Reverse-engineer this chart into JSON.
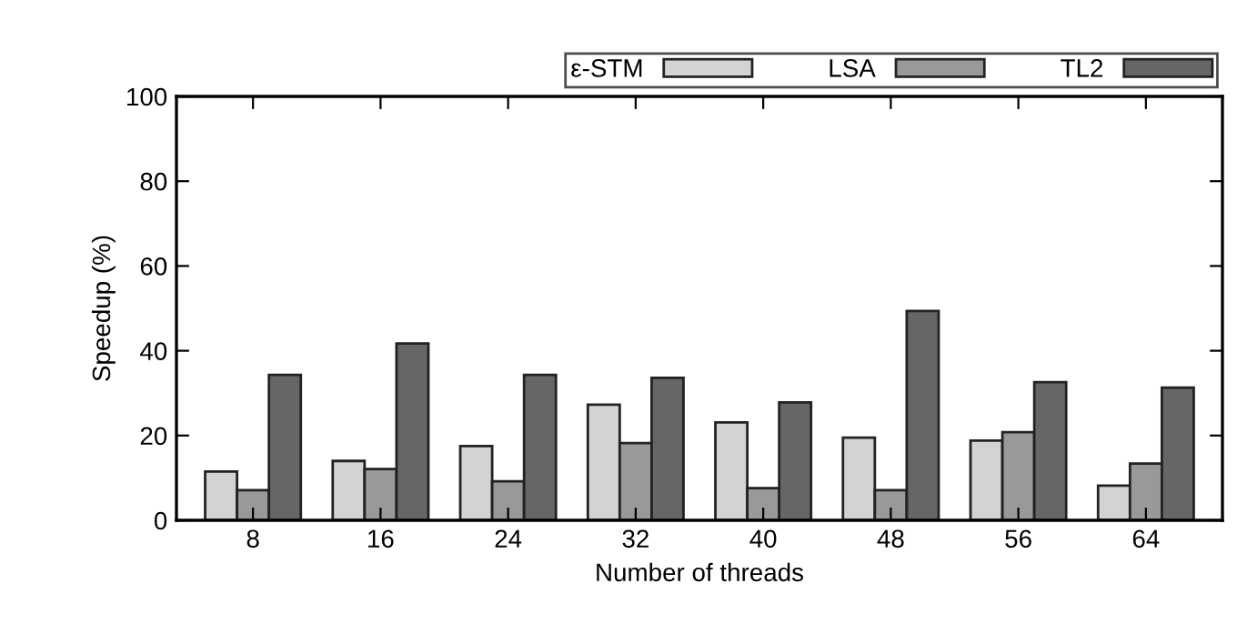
{
  "chart_data": {
    "type": "bar",
    "xlabel": "Number of threads",
    "ylabel": "Speedup (%)",
    "categories": [
      "8",
      "16",
      "24",
      "32",
      "40",
      "48",
      "56",
      "64"
    ],
    "series": [
      {
        "name": "ε-STM",
        "color": "#d3d3d3",
        "values": [
          11.5,
          14,
          17.5,
          27.3,
          23.1,
          19.5,
          18.8,
          8.2
        ]
      },
      {
        "name": "LSA",
        "color": "#999999",
        "values": [
          7.1,
          12.1,
          9.2,
          18.2,
          7.6,
          7.1,
          20.8,
          13.4
        ]
      },
      {
        "name": "TL2",
        "color": "#666666",
        "values": [
          34.3,
          41.7,
          34.3,
          33.6,
          27.8,
          49.4,
          32.6,
          31.3
        ]
      }
    ],
    "ylim": [
      0,
      100
    ],
    "yticks": [
      0,
      20,
      40,
      60,
      80,
      100
    ],
    "grid": false,
    "legend": "top right"
  }
}
